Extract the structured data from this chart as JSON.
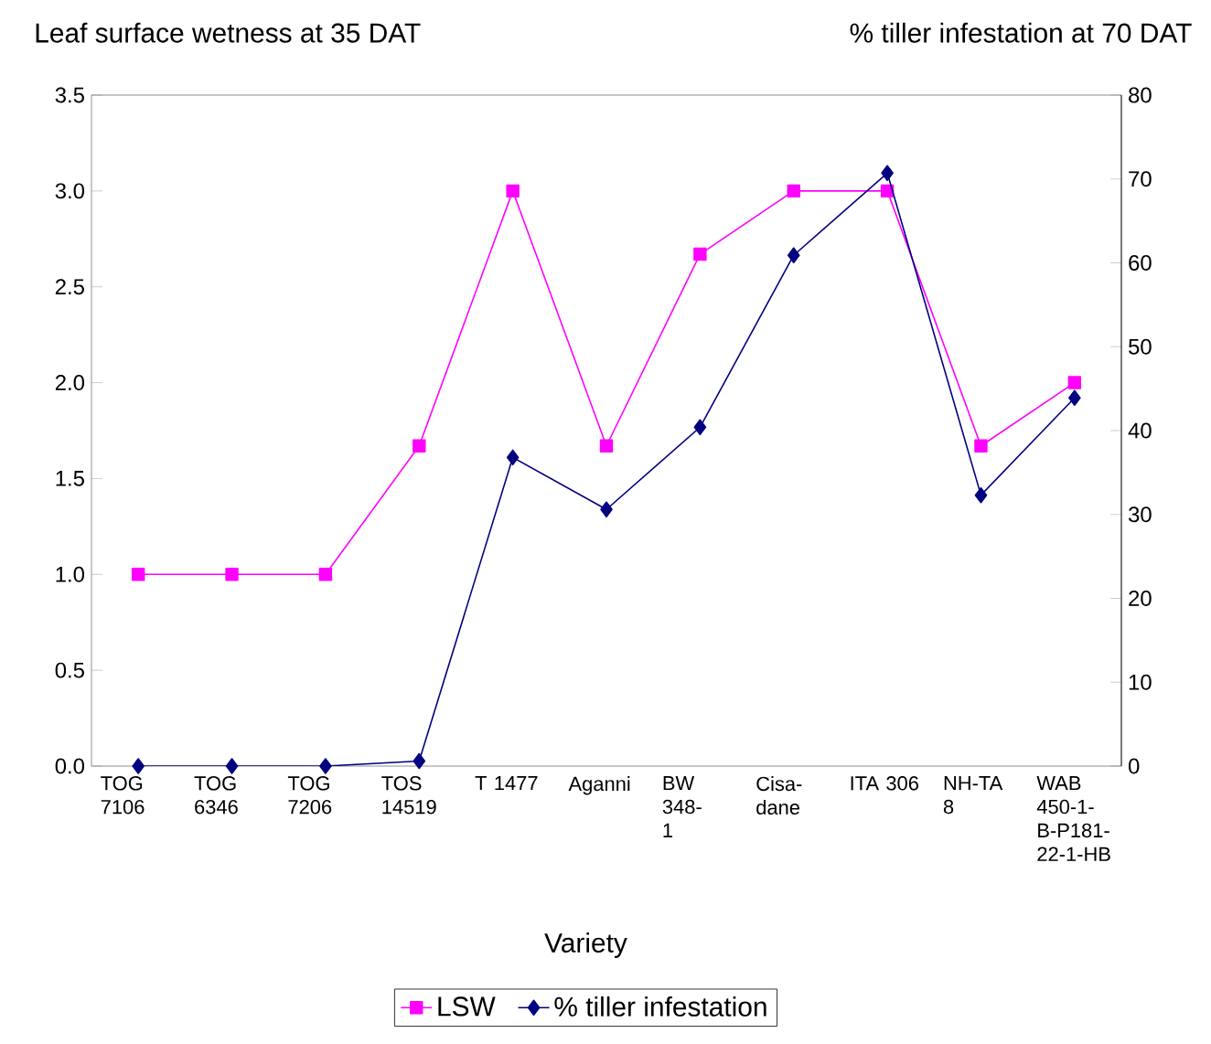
{
  "chart_data": {
    "type": "line",
    "ylabel": "Leaf surface wetness at 35 DAT",
    "y2label": "% tiller infestation at 70 DAT",
    "xlabel": "Variety",
    "categories": [
      "TOG 7106",
      "TOG 6346",
      "TOG 7206",
      "TOS 14519",
      "T 1477",
      "Aganni",
      "BW 348-1",
      "Cisa-dane",
      "ITA 306",
      "NH-TA 8",
      "WAB 450-1-B-P181-22-1-HB"
    ],
    "series": [
      {
        "name": "LSW",
        "color": "#ff00ff",
        "marker": "square",
        "values": [
          1.0,
          1.0,
          1.0,
          1.67,
          3.0,
          1.67,
          2.67,
          3.0,
          3.0,
          1.67,
          2.0
        ]
      },
      {
        "name": "% tiller infestation",
        "color": "#000080",
        "marker": "diamond",
        "axis": "y2",
        "values": [
          0,
          0,
          0,
          0.6,
          36.8,
          30.6,
          40.4,
          60.9,
          70.7,
          32.3,
          43.9
        ]
      }
    ],
    "ylim": [
      0,
      3.5
    ],
    "yticks": [
      {
        "value": 0,
        "label": "0.0"
      },
      0.5,
      {
        "value": 1,
        "label": "1.0"
      },
      1.5,
      {
        "value": 2,
        "label": "2.0"
      },
      2.5,
      {
        "value": 3,
        "label": "3.0"
      },
      3.5
    ],
    "y2lim": [
      0,
      80
    ],
    "y2ticks": [
      0,
      10,
      20,
      30,
      40,
      50,
      60,
      70,
      80
    ],
    "legend": "bottom"
  }
}
